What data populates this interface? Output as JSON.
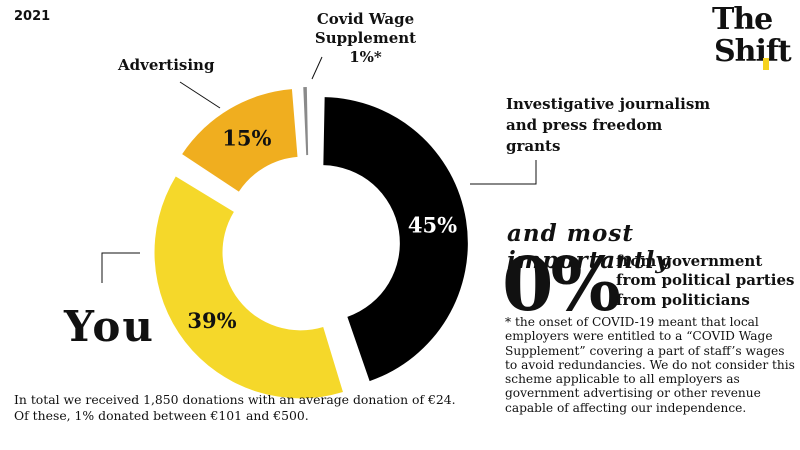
{
  "header": {
    "year": "2021"
  },
  "logo": {
    "line1": "The",
    "line2": "Shift"
  },
  "chart_data": {
    "type": "pie",
    "title": "",
    "slices": [
      {
        "label": "Investigative journalism and press freedom grants",
        "value": 45,
        "value_label": "45%",
        "color": "#000000",
        "label_color": "#ffffff"
      },
      {
        "label": "You",
        "value": 39,
        "value_label": "39%",
        "color": "#f5d82a",
        "label_color": "#111111"
      },
      {
        "label": "Advertising",
        "value": 15,
        "value_label": "15%",
        "color": "#f0ae1f",
        "label_color": "#111111"
      },
      {
        "label": "Covid Wage Supplement",
        "value": 1,
        "value_label": "",
        "color": "#8a8a8a",
        "label_color": "#111111"
      }
    ]
  },
  "labels": {
    "covid_line1": "Covid Wage",
    "covid_line2": "Supplement",
    "covid_line3": "1%*",
    "advertising": "Advertising",
    "investigative_line1": "Investigative journalism",
    "investigative_line2": "and press freedom",
    "investigative_line3": "grants",
    "you": "You"
  },
  "importantly": {
    "heading": "and most importantly",
    "zero": "0%",
    "from": [
      "from government",
      "from political parties",
      "from politicians"
    ]
  },
  "footnote": "* the onset of COVID-19 meant that local employers were entitled to a “COVID Wage Supplement” covering a part of staff’s wages to avoid redundancies. We do not consider this scheme applicable to all employers as government advertising or other revenue capable of affecting our independence.",
  "bottom": {
    "line1": "In total we received 1,850 donations with an average donation of €24.",
    "line2": "Of these, 1% donated between €101 and €500."
  }
}
